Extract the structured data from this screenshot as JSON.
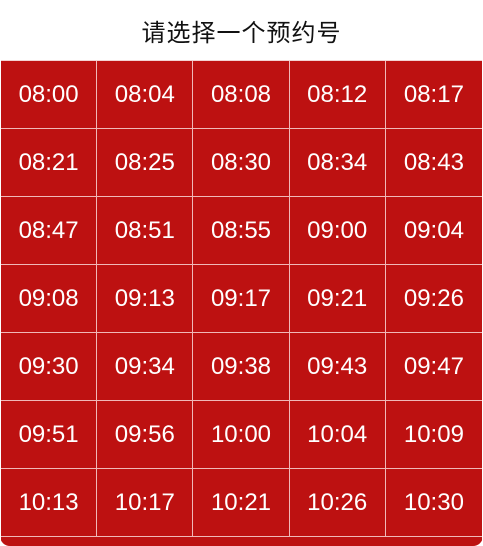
{
  "dialog": {
    "title": "请选择一个预约号"
  },
  "slots": [
    "08:00",
    "08:04",
    "08:08",
    "08:12",
    "08:17",
    "08:21",
    "08:25",
    "08:30",
    "08:34",
    "08:43",
    "08:47",
    "08:51",
    "08:55",
    "09:00",
    "09:04",
    "09:08",
    "09:13",
    "09:17",
    "09:21",
    "09:26",
    "09:30",
    "09:34",
    "09:38",
    "09:43",
    "09:47",
    "09:51",
    "09:56",
    "10:00",
    "10:04",
    "10:09",
    "10:13",
    "10:17",
    "10:21",
    "10:26",
    "10:30"
  ],
  "colors": {
    "slot_background": "#bd1111",
    "slot_text": "#ffffff",
    "grid_line": "#f0b8b8",
    "header_text": "#111111"
  }
}
